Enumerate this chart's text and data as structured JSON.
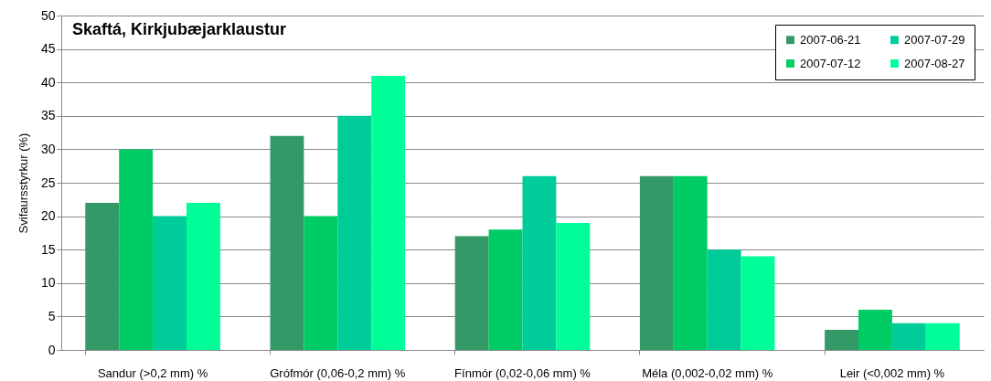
{
  "chart_data": {
    "type": "bar",
    "title": "Skaftá, Kirkjubæjarklaustur",
    "ylabel": "Svifaursstyrkur (%)",
    "categories": [
      "Sandur (>0,2 mm) %",
      "Grófmór (0,06-0,2 mm) %",
      "Fínmór (0,02-0,06 mm) %",
      "Méla (0,002-0,02 mm) %",
      "Leir (<0,002 mm) %"
    ],
    "series": [
      {
        "name": "2007-06-21",
        "color": "#339966",
        "values": [
          22,
          32,
          17,
          26,
          3
        ]
      },
      {
        "name": "2007-07-12",
        "color": "#00cc66",
        "values": [
          30,
          20,
          18,
          26,
          6
        ]
      },
      {
        "name": "2007-07-29",
        "color": "#00cc99",
        "values": [
          20,
          35,
          26,
          15,
          4
        ]
      },
      {
        "name": "2007-08-27",
        "color": "#00ff99",
        "values": [
          22,
          41,
          19,
          14,
          4
        ]
      }
    ],
    "ylim": [
      0,
      50
    ],
    "yticks": [
      0,
      5,
      10,
      15,
      20,
      25,
      30,
      35,
      40,
      45,
      50
    ],
    "grid": "y",
    "legend": "top right"
  }
}
